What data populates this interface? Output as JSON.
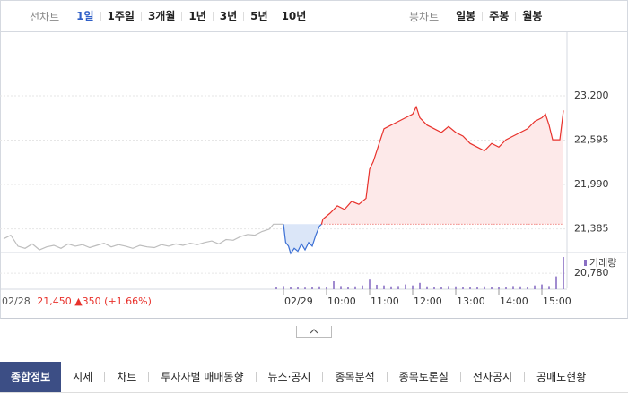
{
  "toolbar": {
    "line_label": "선차트",
    "line_periods": [
      "1일",
      "1주일",
      "3개월",
      "1년",
      "3년",
      "5년",
      "10년"
    ],
    "active_period": 0,
    "candle_label": "봉차트",
    "candle_periods": [
      "일봉",
      "주봉",
      "월봉"
    ]
  },
  "chart_data": {
    "type": "line",
    "xlim": [
      -5,
      785
    ],
    "ylim": [
      20660,
      23590
    ],
    "xticks": [
      {
        "value": 390,
        "label": "02/29"
      },
      {
        "value": 450,
        "label": "10:00"
      },
      {
        "value": 510,
        "label": "11:00"
      },
      {
        "value": 570,
        "label": "12:00"
      },
      {
        "value": 630,
        "label": "13:00"
      },
      {
        "value": 690,
        "label": "14:00"
      },
      {
        "value": 750,
        "label": "15:00"
      }
    ],
    "yticks": [
      {
        "value": 20780,
        "label": "20,780"
      },
      {
        "value": 21385,
        "label": "21,385"
      },
      {
        "value": 21990,
        "label": "21,990"
      },
      {
        "value": 22595,
        "label": "22,595"
      },
      {
        "value": 23200,
        "label": "23,200"
      }
    ],
    "grid": true,
    "reference": 21450,
    "series": [
      {
        "color": "#bdbdbd",
        "fill": null,
        "x": [
          0,
          10,
          20,
          30,
          40,
          50,
          60,
          70,
          80,
          90,
          100,
          110,
          120,
          130,
          140,
          150,
          160,
          170,
          180,
          190,
          200,
          210,
          220,
          230,
          240,
          250,
          260,
          270,
          280,
          290,
          300,
          310,
          320,
          330,
          340,
          350,
          360,
          370,
          376,
          390
        ],
        "values": [
          21250,
          21300,
          21150,
          21120,
          21180,
          21100,
          21140,
          21160,
          21120,
          21180,
          21150,
          21170,
          21130,
          21160,
          21190,
          21140,
          21170,
          21150,
          21120,
          21160,
          21140,
          21130,
          21170,
          21150,
          21180,
          21160,
          21190,
          21170,
          21200,
          21220,
          21180,
          21240,
          21230,
          21280,
          21310,
          21300,
          21350,
          21380,
          21450,
          21450
        ]
      },
      {
        "color": "#3b6fd4",
        "fill": "#dbe6f8",
        "x": [
          390,
          393,
          397,
          400,
          405,
          410,
          415,
          420,
          425,
          430,
          435,
          440,
          443
        ],
        "values": [
          21450,
          21200,
          21150,
          21050,
          21120,
          21080,
          21180,
          21100,
          21200,
          21150,
          21300,
          21420,
          21450
        ]
      },
      {
        "color": "#e8322c",
        "fill": "#fde9e9",
        "x": [
          443,
          445,
          455,
          465,
          475,
          485,
          495,
          505,
          510,
          515,
          520,
          525,
          530,
          540,
          550,
          560,
          570,
          575,
          580,
          590,
          600,
          610,
          620,
          630,
          640,
          650,
          660,
          670,
          680,
          690,
          700,
          710,
          720,
          730,
          740,
          750,
          755,
          760,
          765,
          775,
          780
        ],
        "values": [
          21450,
          21520,
          21600,
          21700,
          21650,
          21760,
          21720,
          21800,
          22200,
          22300,
          22450,
          22600,
          22750,
          22800,
          22850,
          22900,
          22950,
          23050,
          22900,
          22800,
          22750,
          22700,
          22780,
          22700,
          22650,
          22550,
          22500,
          22450,
          22550,
          22500,
          22600,
          22650,
          22700,
          22750,
          22850,
          22900,
          22950,
          22800,
          22600,
          22600,
          23000
        ]
      }
    ],
    "volume": {
      "label": "거래량",
      "ylim": [
        0,
        100
      ],
      "x": [
        380,
        390,
        400,
        410,
        420,
        430,
        440,
        450,
        460,
        470,
        480,
        490,
        500,
        510,
        520,
        530,
        540,
        550,
        560,
        570,
        580,
        590,
        600,
        610,
        620,
        630,
        640,
        650,
        660,
        670,
        680,
        690,
        700,
        710,
        720,
        730,
        740,
        750,
        760,
        770,
        780
      ],
      "values": [
        8,
        10,
        6,
        8,
        5,
        7,
        9,
        8,
        25,
        10,
        8,
        9,
        12,
        30,
        14,
        12,
        9,
        10,
        15,
        12,
        20,
        9,
        8,
        7,
        10,
        9,
        6,
        8,
        7,
        9,
        6,
        8,
        7,
        10,
        9,
        8,
        12,
        15,
        10,
        40,
        100
      ]
    }
  },
  "summary": {
    "date": "02/28",
    "price": "21,450",
    "change": "▲350",
    "rate": "(+1.66%)"
  },
  "tabs": {
    "items": [
      "종합정보",
      "시세",
      "차트",
      "투자자별 매매동향",
      "뉴스·공시",
      "종목분석",
      "종목토론실",
      "전자공시",
      "공매도현황"
    ],
    "active": 0
  }
}
